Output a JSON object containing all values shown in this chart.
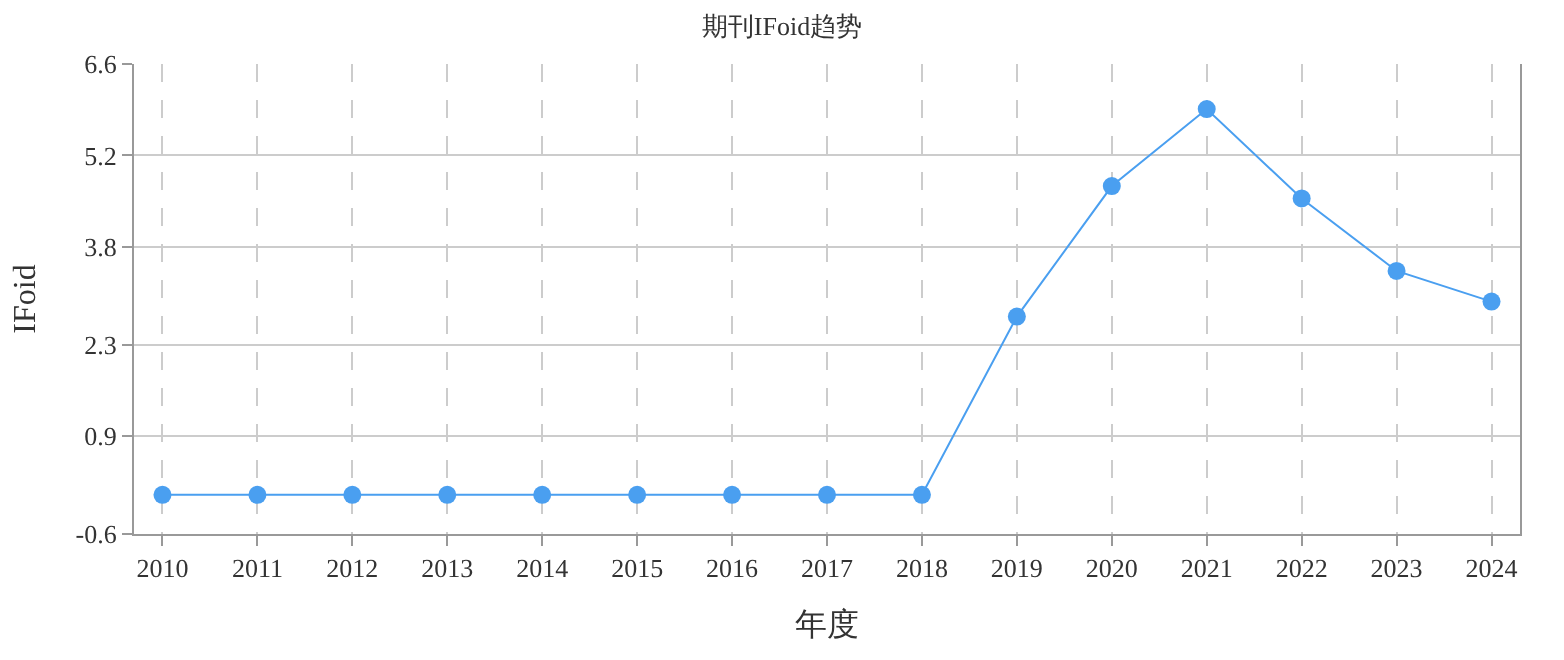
{
  "chart_data": {
    "type": "line",
    "title": "期刊IFoid趋势",
    "xlabel": "年度",
    "ylabel": "IFoid",
    "categories": [
      "2010",
      "2011",
      "2012",
      "2013",
      "2014",
      "2015",
      "2016",
      "2017",
      "2018",
      "2019",
      "2020",
      "2021",
      "2022",
      "2023",
      "2024"
    ],
    "series": [
      {
        "color": "#4a9ff0",
        "values": [
          0,
          0,
          0,
          0,
          0,
          0,
          0,
          0,
          0,
          2.73,
          4.73,
          5.91,
          4.54,
          3.43,
          2.96
        ]
      }
    ],
    "ylim": [
      -0.6,
      6.6
    ],
    "yticks": [
      -0.6,
      0.9,
      2.3,
      3.8,
      5.2,
      6.6
    ],
    "grid": true,
    "marker": "circle",
    "line_style": "solid",
    "legend": false
  }
}
